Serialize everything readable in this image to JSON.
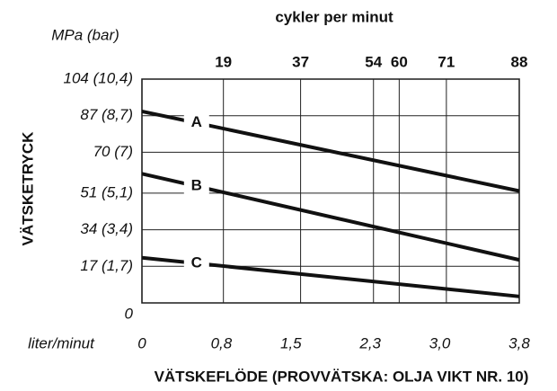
{
  "chart_data": {
    "type": "line",
    "x2_label": "cykler per minut",
    "y_unit": "MPa (bar)",
    "y_label": "VÄTSKETRYCK",
    "x_unit": "liter/minut",
    "x_label": "VÄTSKEFLÖDE (PROVVÄTSKA: OLJA VIKT NR. 10)",
    "xlim": [
      0,
      3.8
    ],
    "xticks": [
      0,
      {
        "value": 0.8,
        "label": "0,8"
      },
      {
        "value": 1.5,
        "label": "1,5"
      },
      {
        "value": 2.3,
        "label": "2,3"
      },
      {
        "value": 3.0,
        "label": "3,0"
      },
      {
        "value": 3.8,
        "label": "3,8"
      }
    ],
    "x2lim": [
      0,
      88
    ],
    "x2ticks": [
      19,
      37,
      54,
      60,
      71,
      88
    ],
    "ylim": [
      0,
      104
    ],
    "yticks": [
      0,
      {
        "value": 17,
        "label": "17 (1,7)"
      },
      {
        "value": 34,
        "label": "34 (3,4)"
      },
      {
        "value": 51,
        "label": "51 (5,1)"
      },
      {
        "value": 70,
        "label": "70 (7)"
      },
      {
        "value": 87,
        "label": "87 (8,7)"
      },
      {
        "value": 104,
        "label": "104 (10,4)"
      }
    ],
    "grid": true,
    "x": [
      0,
      3.8
    ],
    "series": [
      {
        "name": "A",
        "color": "#111111",
        "values": [
          89,
          52
        ]
      },
      {
        "name": "B",
        "color": "#111111",
        "values": [
          60,
          20
        ]
      },
      {
        "name": "C",
        "color": "#111111",
        "values": [
          21,
          3
        ]
      }
    ]
  }
}
